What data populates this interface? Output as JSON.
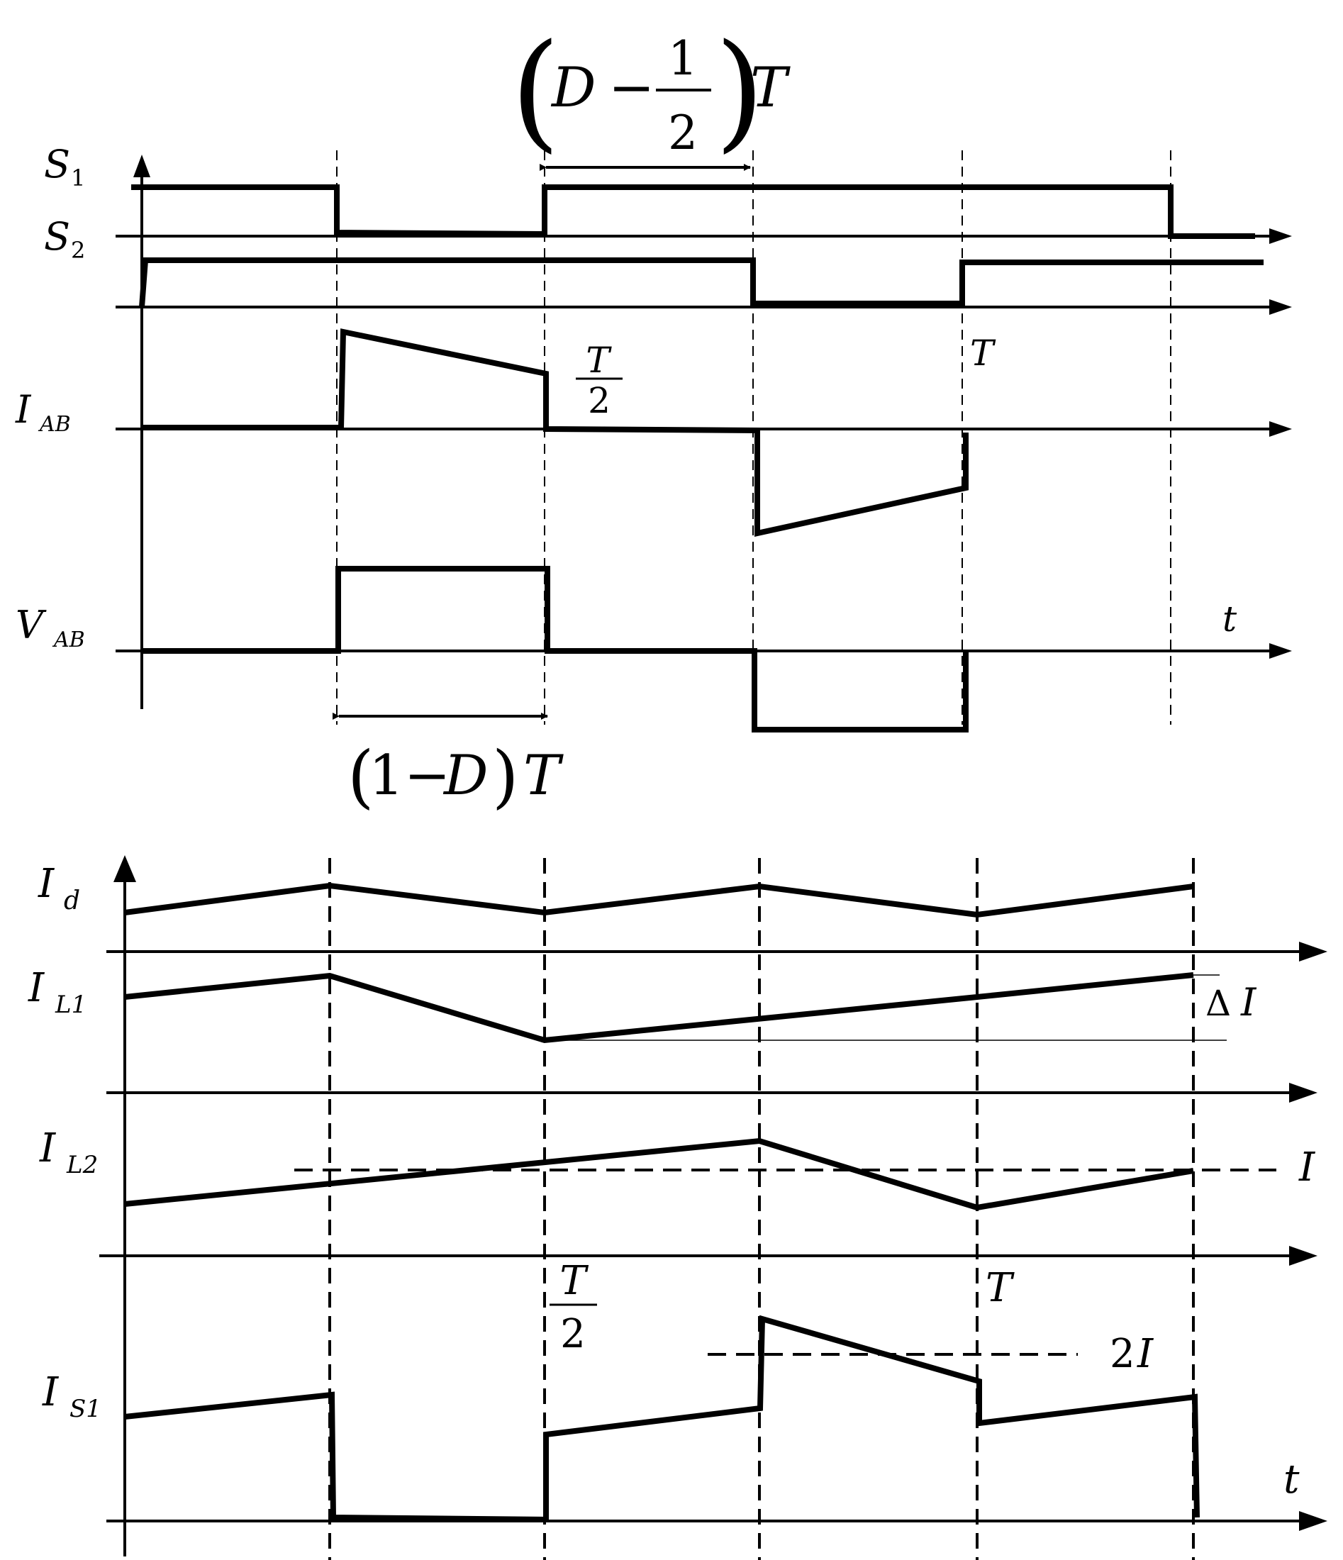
{
  "top": {
    "signals": {
      "s1": {
        "main": "S",
        "sub": "1"
      },
      "s2": {
        "main": "S",
        "sub": "2"
      },
      "iab": {
        "main": "I",
        "sub": "AB"
      },
      "vab": {
        "main": "V",
        "sub": "AB"
      }
    },
    "t_axis": "t",
    "half_period": {
      "num": "T",
      "den": "2"
    },
    "period": "T",
    "top_interval": {
      "open": "(",
      "d": "D",
      "minus": "−",
      "num": "1",
      "den": "2",
      "close": ")",
      "t": "T"
    },
    "bottom_interval": {
      "open": "(",
      "one": "1",
      "minus": "−",
      "d": "D",
      "close": ")",
      "t": "T"
    }
  },
  "bottom": {
    "signals": {
      "id": {
        "main": "I",
        "sub": "d"
      },
      "il1": {
        "main": "I",
        "sub": "L1"
      },
      "il2": {
        "main": "I",
        "sub": "L2"
      },
      "is1": {
        "main": "I",
        "sub": "S1"
      }
    },
    "delta_i": {
      "delta": "Δ",
      "i": "I"
    },
    "avg_i": "I",
    "two_i": {
      "two": "2",
      "i": "I"
    },
    "half_period": {
      "num": "T",
      "den": "2"
    },
    "period": "T",
    "t_axis": "t"
  }
}
